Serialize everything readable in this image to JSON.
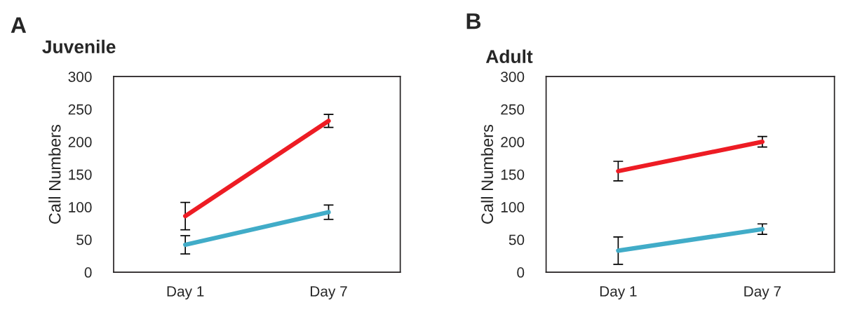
{
  "chart_data": [
    {
      "type": "line",
      "title": "Juvenile",
      "ylabel": "Call Numbers",
      "annotations": [
        "A"
      ],
      "categories": [
        "Day 1",
        "Day 7"
      ],
      "ylim": [
        0,
        300
      ],
      "yticks": [
        0,
        50,
        100,
        150,
        200,
        250,
        300
      ],
      "marker": "none",
      "line_style": "solid",
      "series": [
        {
          "color": "#ed1c24",
          "values": [
            86,
            232
          ],
          "errors": [
            21,
            10
          ]
        },
        {
          "color": "#41acc8",
          "values": [
            42,
            92
          ],
          "errors": [
            14,
            11
          ]
        }
      ]
    },
    {
      "type": "line",
      "title": "Adult",
      "ylabel": "Call Numbers",
      "annotations": [
        "B"
      ],
      "categories": [
        "Day 1",
        "Day 7"
      ],
      "ylim": [
        0,
        300
      ],
      "yticks": [
        0,
        50,
        100,
        150,
        200,
        250,
        300
      ],
      "marker": "none",
      "line_style": "solid",
      "series": [
        {
          "color": "#ed1c24",
          "values": [
            155,
            200
          ],
          "errors": [
            15,
            8
          ]
        },
        {
          "color": "#41acc8",
          "values": [
            33,
            66
          ],
          "errors": [
            21,
            8
          ]
        }
      ]
    }
  ]
}
